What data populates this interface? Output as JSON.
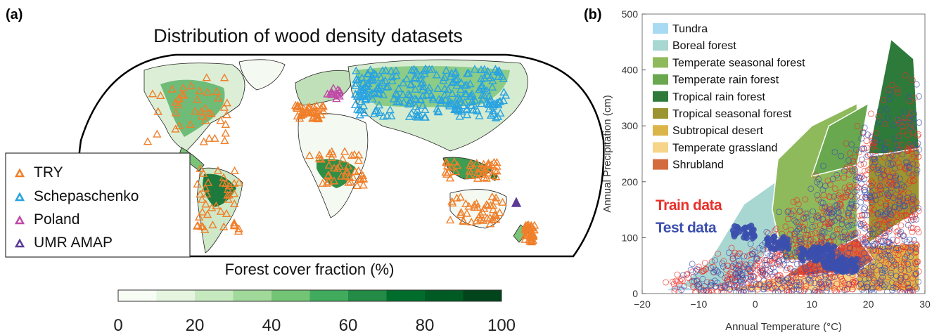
{
  "panel_a": {
    "label": "(a)",
    "title": "Distribution of wood density datasets",
    "legend": [
      {
        "name": "TRY",
        "color": "#f07f2a"
      },
      {
        "name": "Schepaschenko",
        "color": "#2aa3e0"
      },
      {
        "name": "Poland",
        "color": "#c04aa8"
      },
      {
        "name": "UMR AMAP",
        "color": "#5b3a93"
      }
    ],
    "colorbar_title": "Forest cover fraction (%)",
    "colorbar_ticks": [
      "0",
      "20",
      "40",
      "60",
      "80",
      "100"
    ]
  },
  "panel_b": {
    "label": "(b)",
    "annotations": {
      "train": "Train data",
      "test": "Test data",
      "train_color": "#e8302a",
      "test_color": "#3b4fae"
    }
  },
  "chart_data": [
    {
      "type": "map",
      "title": "Distribution of wood density datasets",
      "legend": [
        "TRY",
        "Schepaschenko",
        "Poland",
        "UMR AMAP"
      ],
      "colorbar": {
        "title": "Forest cover fraction (%)",
        "range": [
          0,
          100
        ],
        "bins": [
          0,
          10,
          20,
          30,
          40,
          50,
          60,
          70,
          80,
          90,
          100
        ],
        "colors": [
          "#f7fcf5",
          "#e5f5e0",
          "#c7e9c0",
          "#a1d99b",
          "#74c476",
          "#41ab5d",
          "#238b45",
          "#006d2c",
          "#005a24",
          "#00441b"
        ]
      }
    },
    {
      "type": "scatter",
      "xlabel": "Annual Temperature (°C)",
      "ylabel": "Annual Precipitation (cm)",
      "xlim": [
        -20,
        30
      ],
      "ylim": [
        0,
        500
      ],
      "xticks": [
        -20,
        -10,
        0,
        10,
        20,
        30
      ],
      "yticks": [
        0,
        100,
        200,
        300,
        400,
        500
      ],
      "grid": false,
      "legend_position": "top-left",
      "biomes": [
        {
          "name": "Tundra",
          "color": "#a9daf3"
        },
        {
          "name": "Boreal forest",
          "color": "#a8d7d2"
        },
        {
          "name": "Temperate seasonal forest",
          "color": "#8fba5b"
        },
        {
          "name": "Temperate rain forest",
          "color": "#69a84f"
        },
        {
          "name": "Tropical rain forest",
          "color": "#2d7a3a"
        },
        {
          "name": "Tropical seasonal forest",
          "color": "#9c9430"
        },
        {
          "name": "Subtropical desert",
          "color": "#dcb54a"
        },
        {
          "name": "Temperate grassland",
          "color": "#f6d58a"
        },
        {
          "name": "Shrubland",
          "color": "#d46b3f"
        }
      ],
      "series": [
        {
          "name": "Train data",
          "color": "#e8302a"
        },
        {
          "name": "Test data",
          "color": "#3b4fae"
        }
      ]
    }
  ]
}
